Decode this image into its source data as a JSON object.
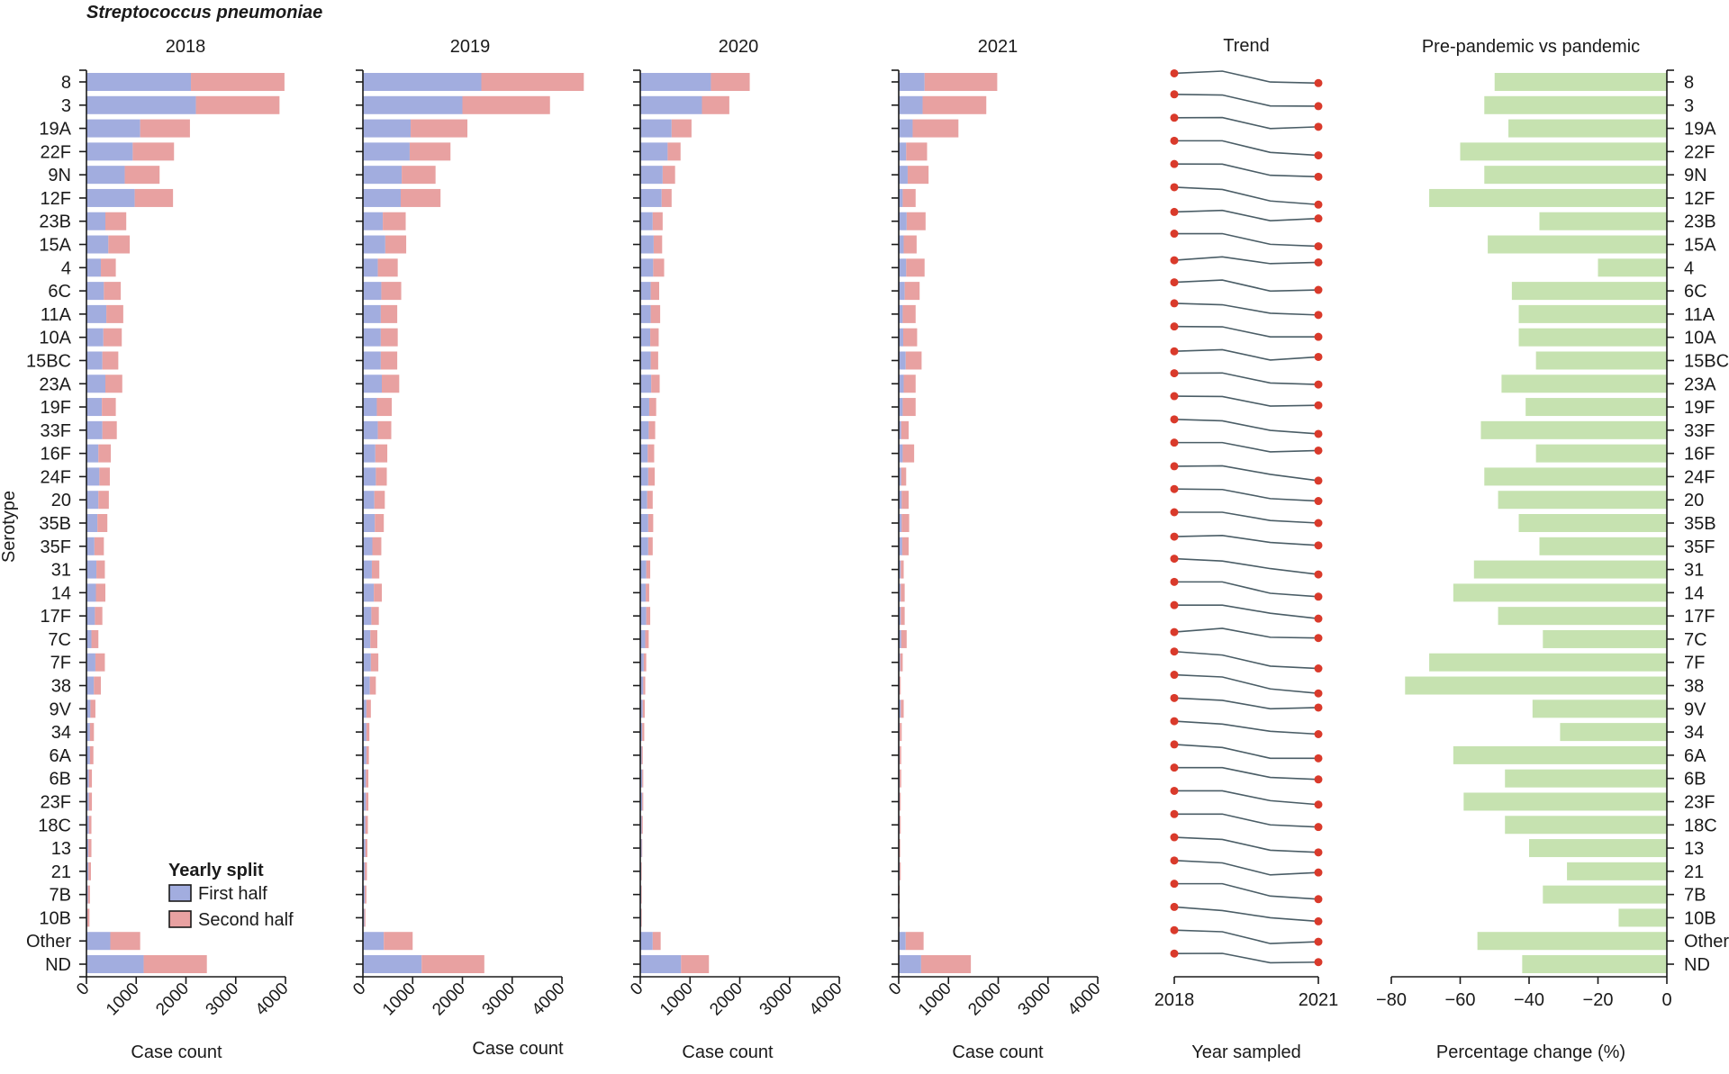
{
  "chart_data": {
    "type": "bar",
    "figure_title": "Streptococcus pneumoniae",
    "ylabel": "Serotype",
    "serotypes": [
      "8",
      "3",
      "19A",
      "22F",
      "9N",
      "12F",
      "23B",
      "15A",
      "4",
      "6C",
      "11A",
      "10A",
      "15BC",
      "23A",
      "19F",
      "33F",
      "16F",
      "24F",
      "20",
      "35B",
      "35F",
      "31",
      "14",
      "17F",
      "7C",
      "7F",
      "38",
      "9V",
      "34",
      "6A",
      "6B",
      "23F",
      "18C",
      "13",
      "21",
      "7B",
      "10B",
      "Other",
      "ND"
    ],
    "legend": {
      "title": "Yearly split",
      "entries": [
        {
          "label": "First half",
          "color": "#a2addf"
        },
        {
          "label": "Second half",
          "color": "#e8a1a1"
        }
      ]
    },
    "bar_panels": [
      {
        "title": "2018",
        "xlabel": "Case count",
        "xlim": [
          0,
          4000
        ],
        "xticks": [
          "0",
          "1000",
          "2000",
          "3000",
          "4000"
        ],
        "series": [
          {
            "name": "First half",
            "values": [
              2100,
              2200,
              1080,
              930,
              770,
              970,
              380,
              440,
              290,
              350,
              400,
              340,
              320,
              380,
              310,
              320,
              240,
              260,
              240,
              220,
              160,
              200,
              190,
              170,
              100,
              180,
              150,
              80,
              70,
              70,
              50,
              50,
              50,
              40,
              40,
              30,
              20,
              480,
              1150
            ]
          },
          {
            "name": "Second half",
            "values": [
              1880,
              1680,
              1000,
              830,
              700,
              770,
              420,
              430,
              300,
              340,
              340,
              370,
              320,
              340,
              280,
              290,
              250,
              210,
              210,
              200,
              190,
              170,
              190,
              150,
              140,
              190,
              140,
              100,
              80,
              70,
              60,
              60,
              50,
              60,
              50,
              40,
              40,
              600,
              1270
            ]
          }
        ]
      },
      {
        "title": "2019",
        "xlabel": "Case count",
        "xlim": [
          0,
          4000
        ],
        "xticks": [
          "0",
          "1000",
          "2000",
          "3000",
          "4000"
        ],
        "series": [
          {
            "name": "First half",
            "values": [
              2380,
              2000,
              960,
              940,
              780,
              760,
              400,
              450,
              300,
              370,
              360,
              360,
              360,
              380,
              280,
              300,
              250,
              260,
              230,
              240,
              190,
              180,
              220,
              170,
              150,
              160,
              140,
              70,
              70,
              70,
              60,
              60,
              50,
              50,
              40,
              40,
              30,
              420,
              1180
            ]
          },
          {
            "name": "Second half",
            "values": [
              2060,
              1760,
              1140,
              820,
              680,
              800,
              460,
              420,
              400,
              400,
              330,
              340,
              330,
              350,
              300,
              270,
              240,
              220,
              210,
              180,
              180,
              150,
              160,
              150,
              140,
              150,
              120,
              90,
              60,
              50,
              50,
              50,
              50,
              40,
              40,
              30,
              20,
              580,
              1260
            ]
          }
        ]
      },
      {
        "title": "2020",
        "xlabel": "Case count",
        "xlim": [
          0,
          4000
        ],
        "xticks": [
          "0",
          "1000",
          "2000",
          "3000",
          "4000"
        ],
        "series": [
          {
            "name": "First half",
            "values": [
              1420,
              1240,
              630,
              550,
              450,
              430,
              250,
              270,
              260,
              210,
              210,
              200,
              210,
              220,
              180,
              170,
              150,
              160,
              140,
              160,
              160,
              120,
              110,
              120,
              100,
              70,
              60,
              50,
              40,
              30,
              40,
              40,
              30,
              30,
              20,
              20,
              20,
              250,
              820
            ]
          },
          {
            "name": "Second half",
            "values": [
              780,
              550,
              400,
              260,
              250,
              200,
              200,
              170,
              220,
              170,
              190,
              170,
              150,
              170,
              140,
              130,
              130,
              130,
              110,
              100,
              90,
              80,
              70,
              80,
              70,
              50,
              40,
              40,
              40,
              20,
              20,
              20,
              20,
              10,
              10,
              10,
              10,
              160,
              560
            ]
          }
        ]
      },
      {
        "title": "2021",
        "xlabel": "Case count",
        "xlim": [
          0,
          4000
        ],
        "xticks": [
          "0",
          "1000",
          "2000",
          "3000",
          "4000"
        ],
        "series": [
          {
            "name": "First half",
            "values": [
              520,
              480,
              280,
              150,
              180,
              80,
              160,
              100,
              150,
              120,
              80,
              90,
              140,
              100,
              80,
              50,
              80,
              50,
              60,
              60,
              70,
              40,
              40,
              40,
              50,
              30,
              20,
              40,
              20,
              20,
              20,
              20,
              20,
              10,
              20,
              10,
              10,
              140,
              450
            ]
          },
          {
            "name": "Second half",
            "values": [
              1460,
              1280,
              920,
              420,
              420,
              260,
              380,
              260,
              370,
              300,
              260,
              280,
              320,
              240,
              260,
              150,
              230,
              100,
              140,
              150,
              130,
              60,
              80,
              80,
              110,
              50,
              20,
              60,
              40,
              30,
              30,
              20,
              20,
              20,
              20,
              10,
              10,
              360,
              1000
            ]
          }
        ]
      }
    ],
    "trend_panel": {
      "title": "Trend",
      "xlabel": "Year sampled",
      "xticks": [
        "2018",
        "2021"
      ],
      "point_color": "#d93a2b",
      "line_color": "#4a5d66"
    },
    "change_panel": {
      "type": "bar",
      "title": "Pre-pandemic vs pandemic",
      "xlabel": "Percentage change (%)",
      "xlim": [
        -80,
        0
      ],
      "xticks": [
        "−80",
        "−60",
        "−40",
        "−20",
        "0"
      ],
      "color": "#c6e2b0",
      "values": [
        -50,
        -53,
        -46,
        -60,
        -53,
        -69,
        -37,
        -52,
        -20,
        -45,
        -43,
        -43,
        -38,
        -48,
        -41,
        -54,
        -38,
        -53,
        -49,
        -43,
        -37,
        -56,
        -62,
        -49,
        -36,
        -69,
        -76,
        -39,
        -31,
        -62,
        -47,
        -59,
        -47,
        -40,
        -29,
        -36,
        -14,
        -55,
        -42
      ]
    }
  }
}
